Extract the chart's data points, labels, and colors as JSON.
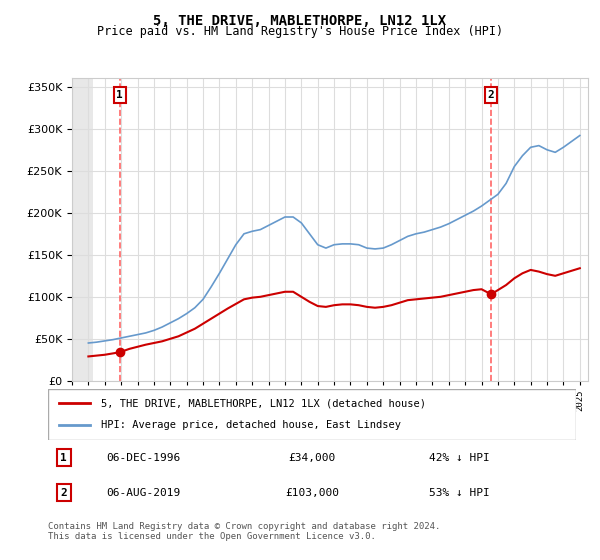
{
  "title": "5, THE DRIVE, MABLETHORPE, LN12 1LX",
  "subtitle": "Price paid vs. HM Land Registry's House Price Index (HPI)",
  "legend_line1": "5, THE DRIVE, MABLETHORPE, LN12 1LX (detached house)",
  "legend_line2": "HPI: Average price, detached house, East Lindsey",
  "footnote": "Contains HM Land Registry data © Crown copyright and database right 2024.\nThis data is licensed under the Open Government Licence v3.0.",
  "sale1_date": "06-DEC-1996",
  "sale1_price": 34000,
  "sale1_label": "42% ↓ HPI",
  "sale2_date": "06-AUG-2019",
  "sale2_price": 103000,
  "sale2_label": "53% ↓ HPI",
  "sale1_x": 1996.92,
  "sale2_x": 2019.59,
  "hpi_color": "#6699cc",
  "price_color": "#cc0000",
  "marker_color": "#cc0000",
  "vline_color": "#ff6666",
  "box_color": "#cc0000",
  "hatch_color": "#cccccc",
  "ylim_max": 360000,
  "ylim_min": 0,
  "xlim_min": 1994.0,
  "xlim_max": 2025.5
}
